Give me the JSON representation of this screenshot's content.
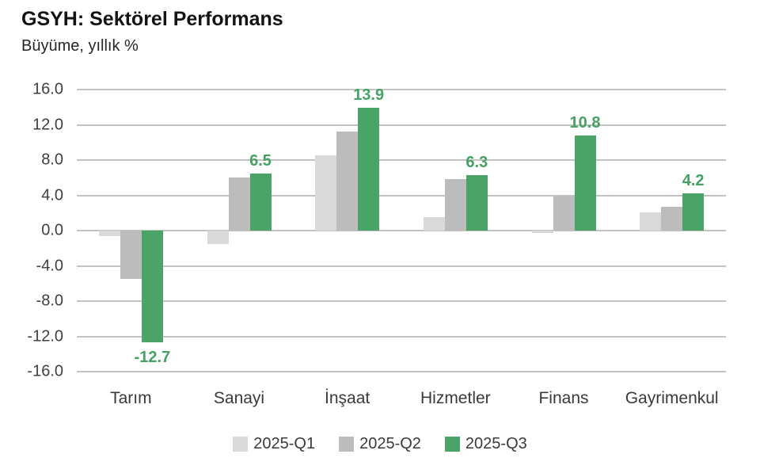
{
  "header": {
    "title": "GSYH: Sektörel Performans",
    "subtitle": "Büyüme, yıllık %"
  },
  "colors": {
    "q1_bar": "#d9d9d9",
    "q2_bar": "#bcbcbc",
    "q3_bar": "#4aa467",
    "value_label": "#46a165",
    "gridline": "#c2c2c2",
    "axis_text": "#3f3f3f",
    "background": "#ffffff"
  },
  "chart_data": {
    "type": "bar",
    "title": "GSYH: Sektörel Performans",
    "subtitle": "Büyüme, yıllık %",
    "xlabel": "",
    "ylabel": "Büyüme, yıllık %",
    "categories": [
      "Tarım",
      "Sanayi",
      "İnşaat",
      "Hizmetler",
      "Finans",
      "Gayrimenkul"
    ],
    "series": [
      {
        "name": "2025-Q1",
        "color": "#d9d9d9",
        "values": [
          -0.6,
          -1.5,
          8.5,
          1.5,
          -0.3,
          2.1
        ]
      },
      {
        "name": "2025-Q2",
        "color": "#bcbcbc",
        "values": [
          -5.5,
          6.0,
          11.2,
          5.8,
          4.0,
          2.7
        ]
      },
      {
        "name": "2025-Q3",
        "color": "#4aa467",
        "values": [
          -12.7,
          6.5,
          13.9,
          6.3,
          10.8,
          4.2
        ],
        "value_labels": [
          "-12.7",
          "6.5",
          "13.9",
          "6.3",
          "10.8",
          "4.2"
        ],
        "value_label_color": "#46a165"
      }
    ],
    "ylim": [
      -16,
      16
    ],
    "yticks": [
      16,
      12,
      8,
      4,
      0,
      -4,
      -8,
      -12,
      -16
    ],
    "ytick_labels": [
      "16.0",
      "12.0",
      "8.0",
      "4.0",
      "0.0",
      "-4.0",
      "-8.0",
      "-12.0",
      "-16.0"
    ],
    "grid": true,
    "legend_position": "bottom"
  },
  "legend": {
    "items": [
      "2025-Q1",
      "2025-Q2",
      "2025-Q3"
    ]
  }
}
